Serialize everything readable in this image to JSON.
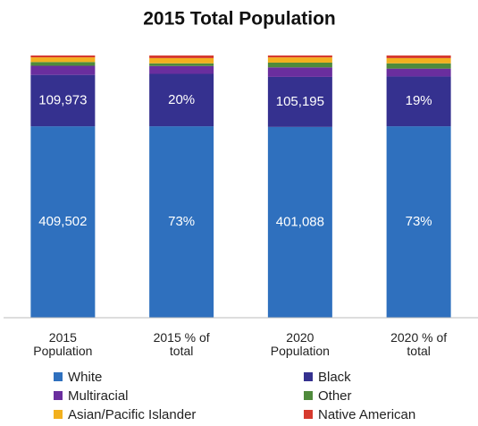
{
  "chart_data": {
    "type": "bar",
    "stacking": "percent",
    "title": "2015 Total Population",
    "categories": [
      "2015 Population",
      "2015 % of total",
      "2020 Population",
      "2020 % of total"
    ],
    "series": [
      {
        "name": "White",
        "color": "#2f70be",
        "values": [
          409502,
          73,
          401088,
          73
        ],
        "value_labels": [
          "409,502",
          "73%",
          "401,088",
          "73%"
        ]
      },
      {
        "name": "Black",
        "color": "#35318f",
        "values": [
          109973,
          20,
          105195,
          19
        ],
        "value_labels": [
          "109,973",
          "20%",
          "105,195",
          "19%"
        ]
      },
      {
        "name": "Multiracial",
        "color": "#6a2e9e",
        "values": [
          19500,
          3,
          20000,
          3
        ]
      },
      {
        "name": "Other",
        "color": "#4f8a3c",
        "values": [
          8000,
          1,
          10000,
          2
        ]
      },
      {
        "name": "Asian/Pacific Islander",
        "color": "#f2b01e",
        "values": [
          10000,
          2,
          11000,
          2
        ]
      },
      {
        "name": "Native American",
        "color": "#d63a2e",
        "values": [
          4000,
          1,
          4000,
          1
        ]
      }
    ]
  }
}
